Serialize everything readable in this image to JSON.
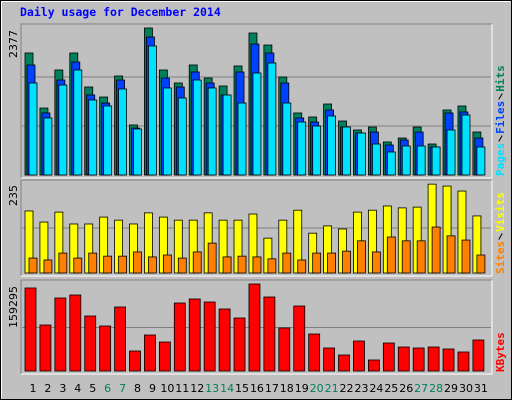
{
  "chart_data": [
    {
      "type": "bar",
      "title": "Daily usage for December 2014",
      "categories": [
        "1",
        "2",
        "3",
        "4",
        "5",
        "6",
        "7",
        "8",
        "9",
        "10",
        "11",
        "12",
        "13",
        "14",
        "15",
        "16",
        "17",
        "18",
        "19",
        "20",
        "21",
        "22",
        "23",
        "24",
        "25",
        "26",
        "27",
        "28",
        "29",
        "30",
        "31"
      ],
      "category_colors": [
        "#000000",
        "#000000",
        "#000000",
        "#000000",
        "#000000",
        "#00805c",
        "#00805c",
        "#000000",
        "#000000",
        "#000000",
        "#000000",
        "#000000",
        "#00805c",
        "#00805c",
        "#000000",
        "#000000",
        "#000000",
        "#000000",
        "#000000",
        "#00805c",
        "#00805c",
        "#000000",
        "#000000",
        "#000000",
        "#000000",
        "#000000",
        "#00805c",
        "#00805c",
        "#000000",
        "#000000",
        "#000000"
      ],
      "ylim": [
        0,
        2377
      ],
      "yticks": [
        2377
      ],
      "series": [
        {
          "name": "Hits",
          "color": "#00805c",
          "values": [
            1973,
            1083,
            1698,
            1973,
            1423,
            1261,
            1601,
            809,
            2377,
            1698,
            1488,
            1779,
            1568,
            1439,
            1763,
            2296,
            2102,
            1585,
            1003,
            938,
            1148,
            873,
            728,
            776,
            534,
            598,
            776,
            501,
            1051,
            1116,
            695
          ]
        },
        {
          "name": "Files",
          "color": "#0040ff",
          "values": [
            1779,
            1003,
            1536,
            1827,
            1294,
            1164,
            1536,
            760,
            2231,
            1568,
            1423,
            1666,
            1488,
            1294,
            1666,
            2118,
            1973,
            1488,
            922,
            857,
            1051,
            776,
            679,
            695,
            485,
            566,
            695,
            453,
            1003,
            1019,
            598
          ]
        },
        {
          "name": "Pages",
          "color": "#00e0ff",
          "values": [
            1488,
            922,
            1455,
            1698,
            1213,
            1116,
            1391,
            744,
            2086,
            1407,
            1245,
            1536,
            1407,
            1294,
            1164,
            1649,
            1811,
            1164,
            857,
            792,
            954,
            776,
            679,
            501,
            372,
            469,
            469,
            453,
            728,
            970,
            453
          ]
        }
      ]
    },
    {
      "type": "bar",
      "ylim": [
        0,
        235
      ],
      "yticks": [
        235
      ],
      "series": [
        {
          "name": "Visits",
          "color": "#ffff00",
          "values": [
            162,
            133,
            159,
            128,
            128,
            146,
            138,
            128,
            157,
            146,
            138,
            138,
            157,
            138,
            138,
            154,
            91,
            138,
            164,
            104,
            123,
            115,
            159,
            164,
            175,
            170,
            172,
            232,
            227,
            214,
            149
          ]
        },
        {
          "name": "Sites",
          "color": "#ff8000",
          "values": [
            39,
            34,
            52,
            39,
            52,
            44,
            44,
            55,
            42,
            47,
            39,
            55,
            78,
            42,
            44,
            42,
            37,
            52,
            34,
            52,
            52,
            57,
            84,
            55,
            94,
            84,
            84,
            120,
            97,
            86,
            47
          ]
        }
      ]
    },
    {
      "type": "bar",
      "ylim": [
        0,
        159295
      ],
      "yticks": [
        159295
      ],
      "series": [
        {
          "name": "KBytes",
          "color": "#ff0000",
          "values": [
            151973,
            84226,
            133663,
            139156,
            100705,
            82395,
            117184,
            36620,
            65916,
            53099,
            124508,
            131832,
            126339,
            113522,
            97043,
            159295,
            135494,
            78733,
            119015,
            67747,
            42113,
            29296,
            54930,
            20141,
            51268,
            43944,
            42113,
            43944,
            40282,
            34789,
            56761
          ]
        }
      ]
    }
  ]
}
